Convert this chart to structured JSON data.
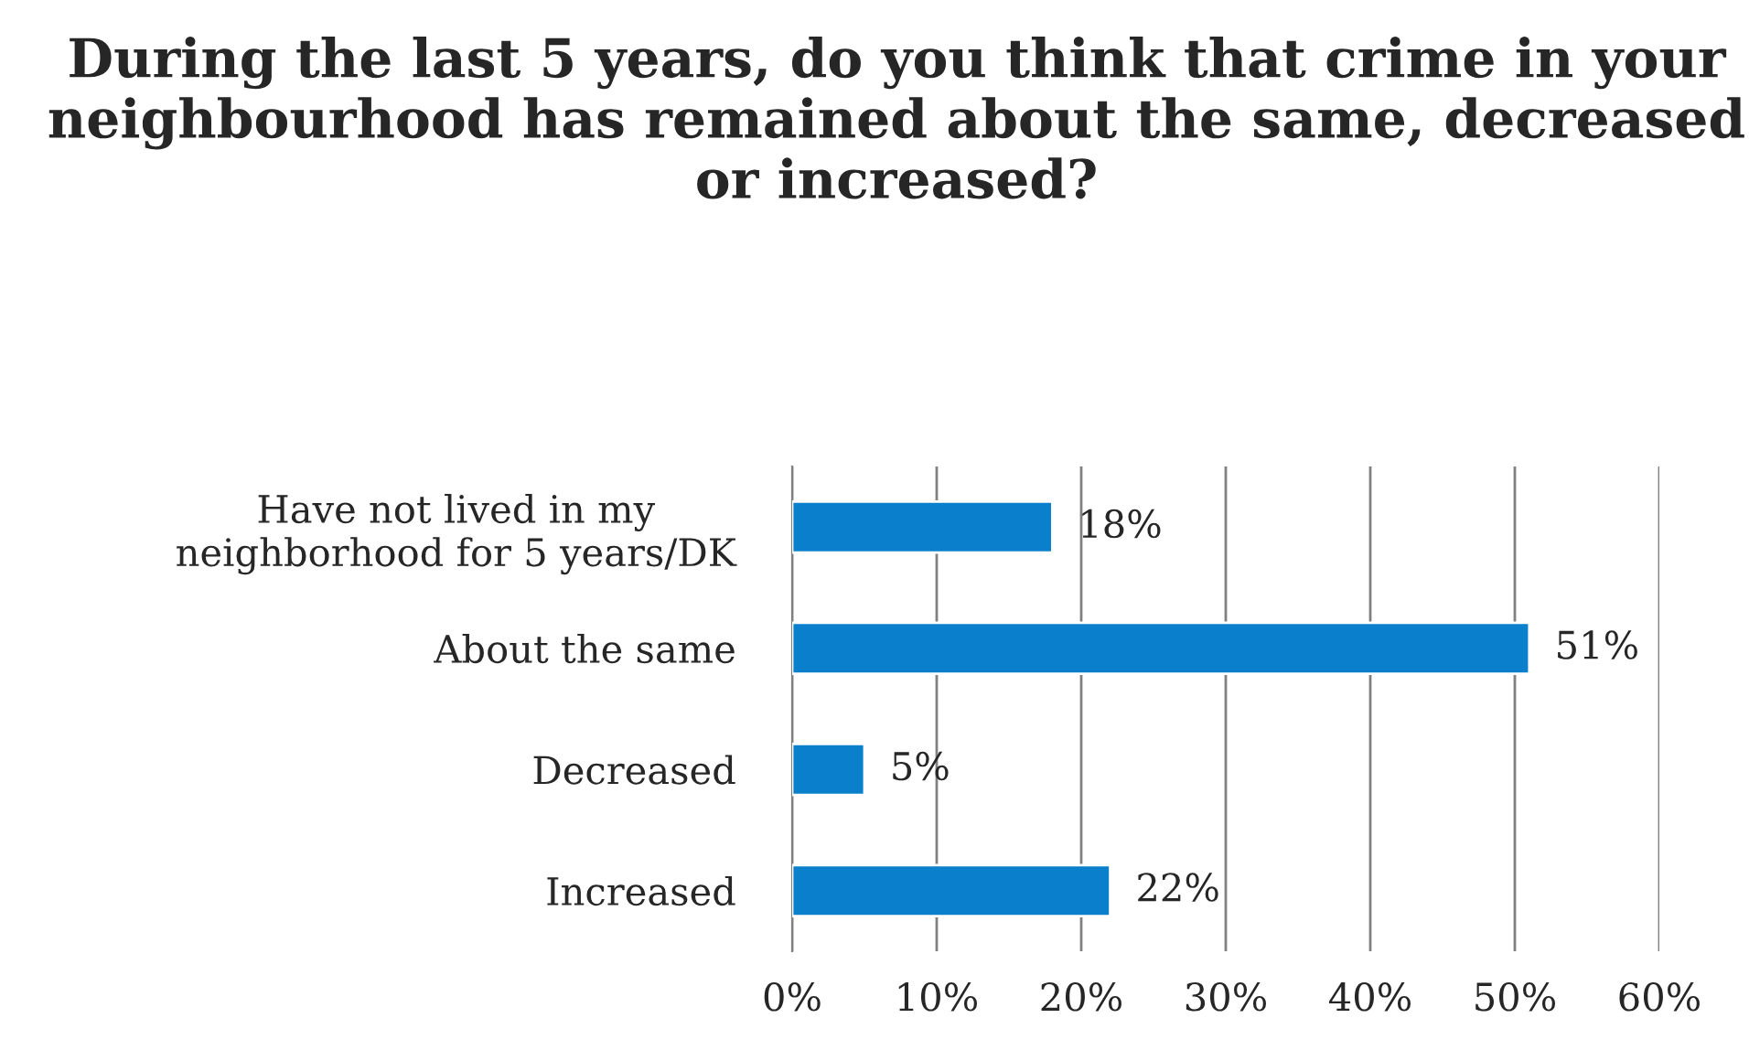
{
  "chart_data": {
    "type": "bar",
    "orientation": "horizontal",
    "title": "During the last 5 years, do you think that crime in your neighbourhood has remained about the same, decreased or increased?",
    "categories": [
      "Have not lived in my\nneighborhood for 5 years/DK",
      "About the same",
      "Decreased",
      "Increased"
    ],
    "values": [
      18,
      51,
      5,
      22
    ],
    "value_labels": [
      "18%",
      "51%",
      "5%",
      "22%"
    ],
    "color": "#0a80cc",
    "xlim": [
      0,
      60
    ],
    "xticks": [
      {
        "value": 0,
        "label": "0%"
      },
      {
        "value": 10,
        "label": "10%"
      },
      {
        "value": 20,
        "label": "20%"
      },
      {
        "value": 30,
        "label": "30%"
      },
      {
        "value": 40,
        "label": "40%"
      },
      {
        "value": 50,
        "label": "50%"
      },
      {
        "value": 60,
        "label": "60%"
      }
    ],
    "grid": "x"
  }
}
